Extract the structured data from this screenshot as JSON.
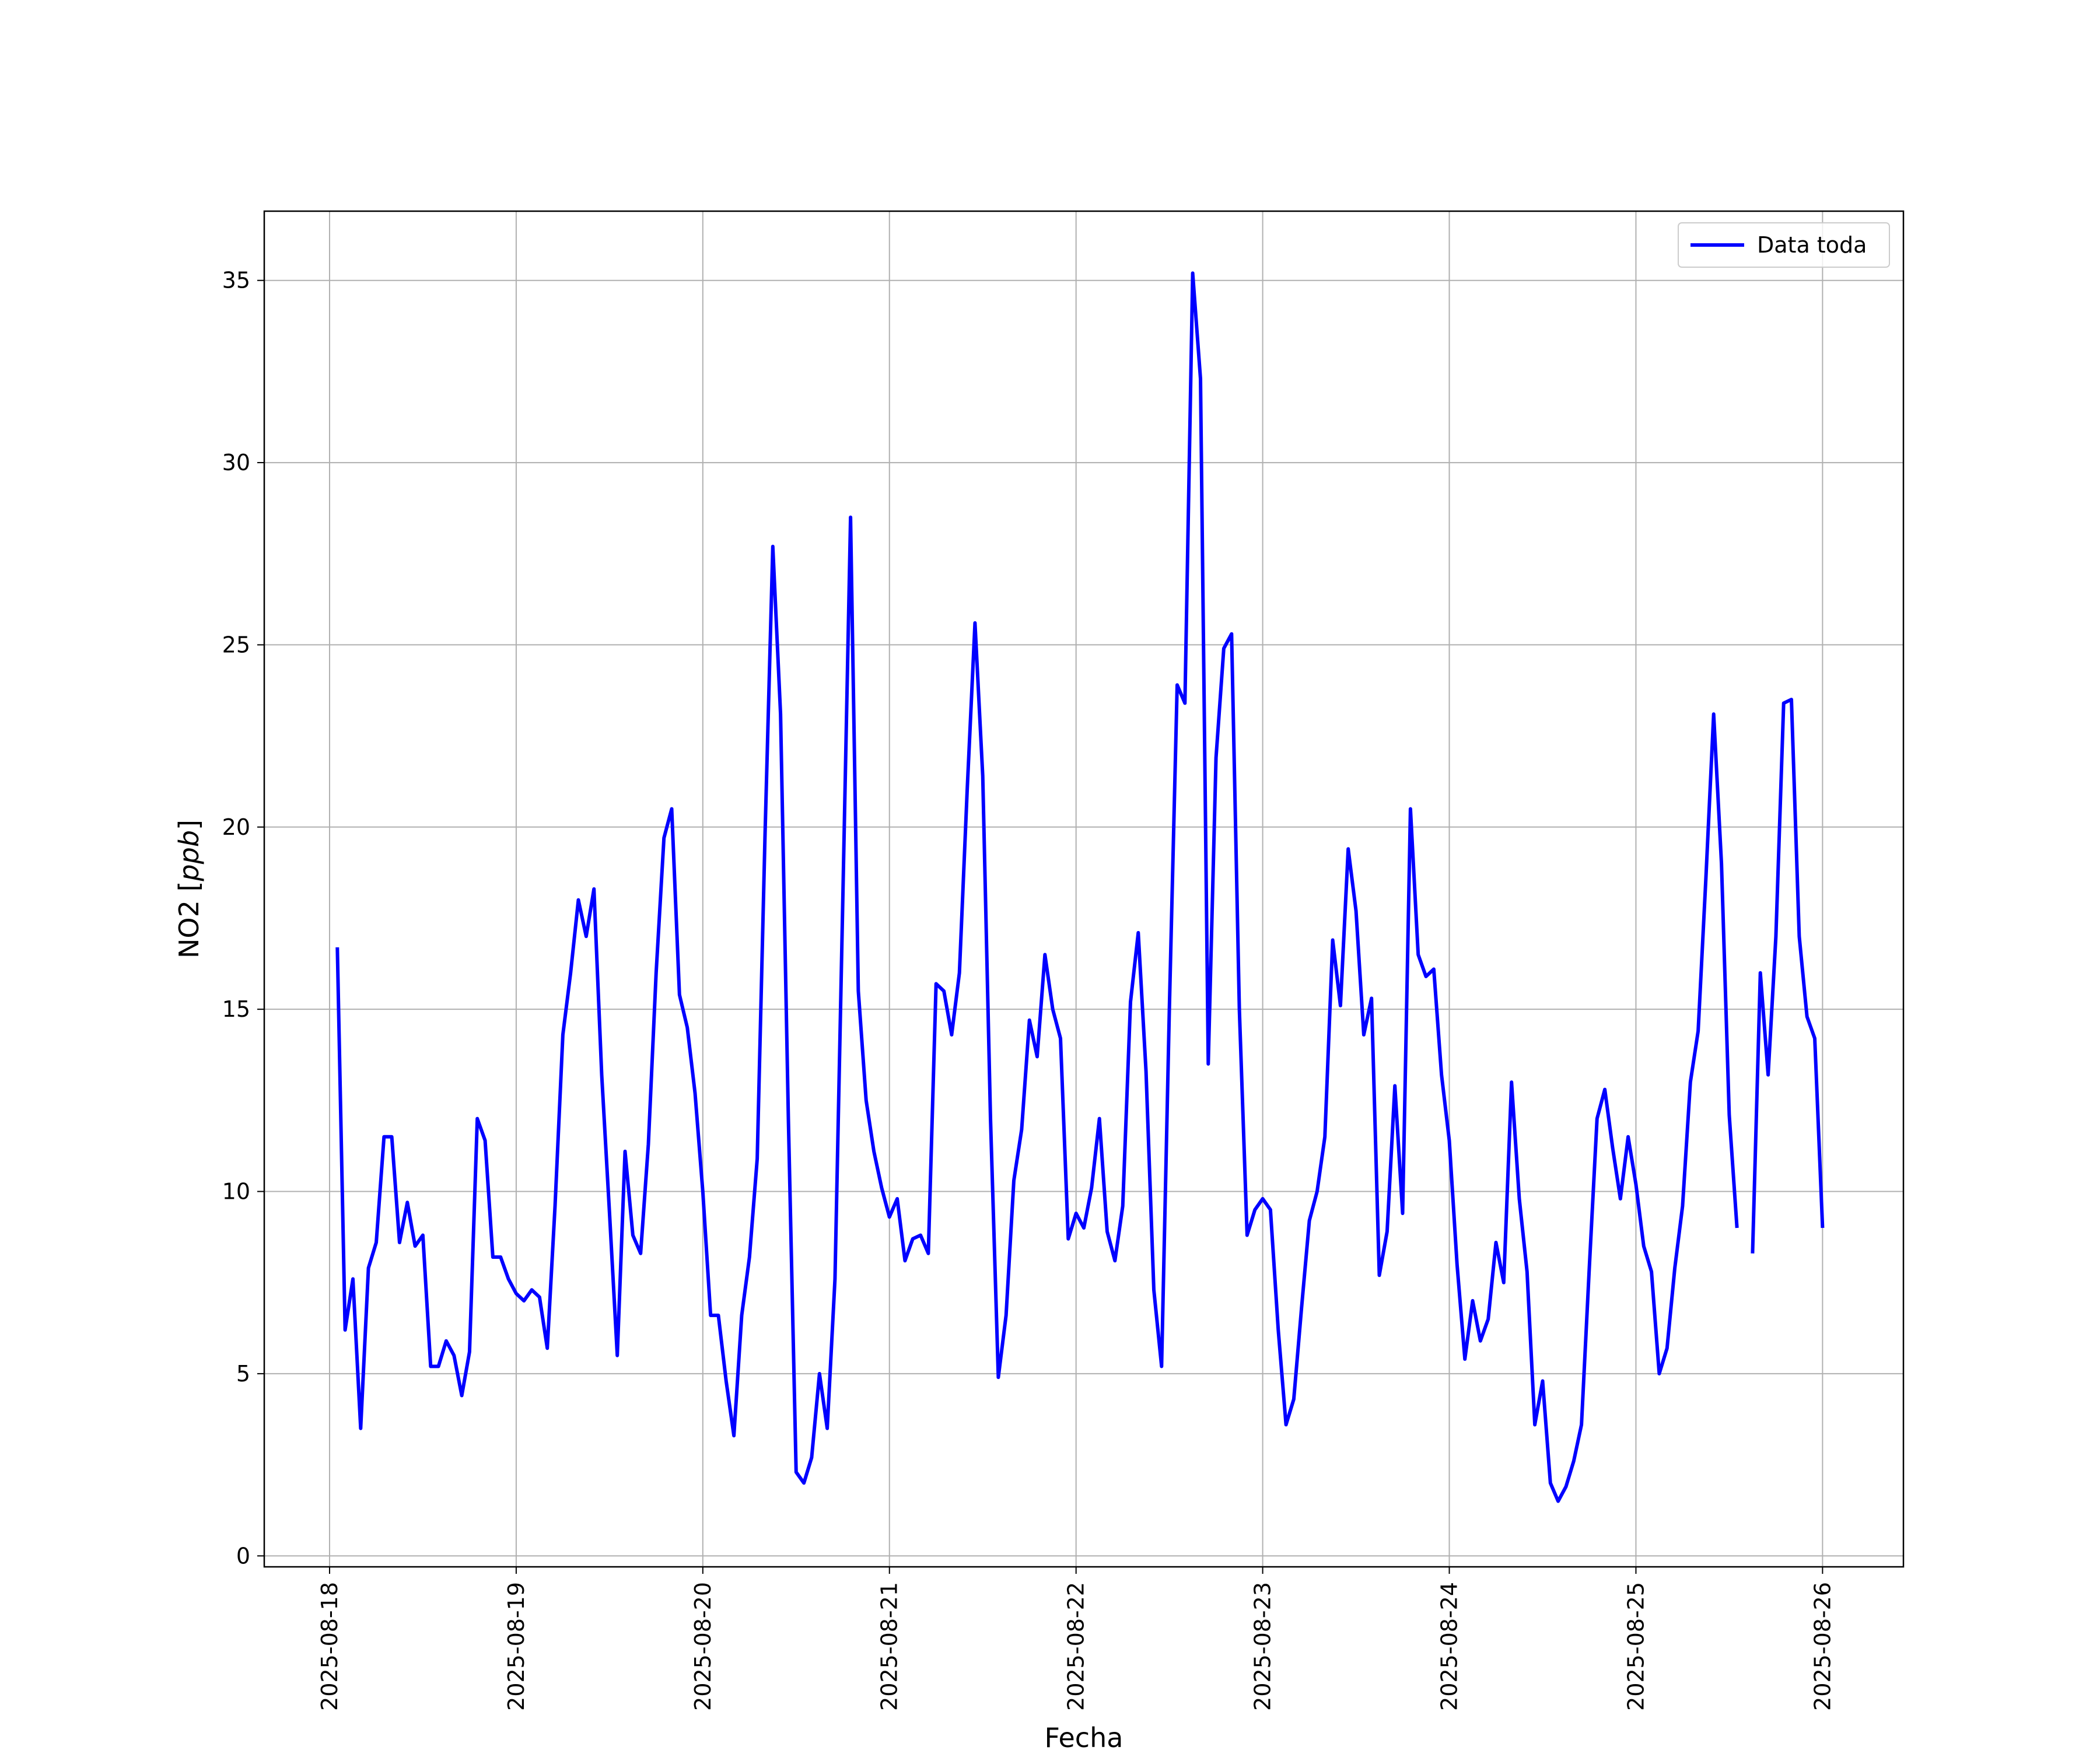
{
  "chart_data": {
    "type": "line",
    "title": "",
    "xlabel": "Fecha",
    "ylabel": "NO2 [ppb]",
    "ylabel_main": "NO2 [",
    "ylabel_unit": "ppb",
    "ylabel_close": "]",
    "ylim": [
      -0.3,
      36.9
    ],
    "xlim": [
      "2025-08-17T15:36",
      "2025-08-26T10:24"
    ],
    "yticks": [
      "0",
      "5",
      "10",
      "15",
      "20",
      "25",
      "30",
      "35"
    ],
    "xticks": [
      "2025-08-18",
      "2025-08-19",
      "2025-08-20",
      "2025-08-21",
      "2025-08-22",
      "2025-08-23",
      "2025-08-24",
      "2025-08-25",
      "2025-08-26"
    ],
    "grid": true,
    "legend": {
      "location": "upper right",
      "entries": [
        "Data toda"
      ]
    },
    "series": [
      {
        "name": "Data toda",
        "color": "#0000ff",
        "segments": [
          {
            "x": [
              "2025-08-18T01:00",
              "2025-08-18T02:00",
              "2025-08-18T03:00",
              "2025-08-18T04:00",
              "2025-08-18T05:00",
              "2025-08-18T06:00",
              "2025-08-18T07:00",
              "2025-08-18T08:00",
              "2025-08-18T09:00",
              "2025-08-18T10:00",
              "2025-08-18T11:00",
              "2025-08-18T12:00",
              "2025-08-18T13:00",
              "2025-08-18T14:00",
              "2025-08-18T15:00",
              "2025-08-18T16:00",
              "2025-08-18T17:00",
              "2025-08-18T18:00",
              "2025-08-18T19:00",
              "2025-08-18T20:00",
              "2025-08-18T21:00",
              "2025-08-18T22:00",
              "2025-08-18T23:00",
              "2025-08-19T00:00",
              "2025-08-19T01:00",
              "2025-08-19T02:00",
              "2025-08-19T03:00",
              "2025-08-19T04:00",
              "2025-08-19T05:00",
              "2025-08-19T06:00",
              "2025-08-19T07:00",
              "2025-08-19T08:00",
              "2025-08-19T09:00",
              "2025-08-19T10:00",
              "2025-08-19T11:00",
              "2025-08-19T12:00",
              "2025-08-19T13:00",
              "2025-08-19T14:00",
              "2025-08-19T15:00",
              "2025-08-19T16:00",
              "2025-08-19T17:00",
              "2025-08-19T18:00",
              "2025-08-19T19:00",
              "2025-08-19T20:00",
              "2025-08-19T21:00",
              "2025-08-19T22:00",
              "2025-08-19T23:00",
              "2025-08-20T00:00",
              "2025-08-20T01:00",
              "2025-08-20T02:00",
              "2025-08-20T03:00",
              "2025-08-20T04:00",
              "2025-08-20T05:00",
              "2025-08-20T06:00",
              "2025-08-20T07:00",
              "2025-08-20T08:00",
              "2025-08-20T09:00",
              "2025-08-20T10:00",
              "2025-08-20T11:00",
              "2025-08-20T12:00",
              "2025-08-20T13:00",
              "2025-08-20T14:00",
              "2025-08-20T15:00",
              "2025-08-20T16:00",
              "2025-08-20T17:00",
              "2025-08-20T18:00",
              "2025-08-20T19:00",
              "2025-08-20T20:00",
              "2025-08-20T21:00",
              "2025-08-20T22:00",
              "2025-08-20T23:00",
              "2025-08-21T00:00",
              "2025-08-21T01:00",
              "2025-08-21T02:00",
              "2025-08-21T03:00",
              "2025-08-21T04:00",
              "2025-08-21T05:00",
              "2025-08-21T06:00",
              "2025-08-21T07:00",
              "2025-08-21T08:00",
              "2025-08-21T09:00",
              "2025-08-21T10:00",
              "2025-08-21T11:00",
              "2025-08-21T12:00",
              "2025-08-21T13:00",
              "2025-08-21T14:00",
              "2025-08-21T15:00",
              "2025-08-21T16:00",
              "2025-08-21T17:00",
              "2025-08-21T18:00",
              "2025-08-21T19:00",
              "2025-08-21T20:00",
              "2025-08-21T21:00",
              "2025-08-21T22:00",
              "2025-08-21T23:00",
              "2025-08-22T00:00",
              "2025-08-22T01:00",
              "2025-08-22T02:00",
              "2025-08-22T03:00",
              "2025-08-22T04:00",
              "2025-08-22T05:00",
              "2025-08-22T06:00",
              "2025-08-22T07:00",
              "2025-08-22T08:00",
              "2025-08-22T09:00",
              "2025-08-22T10:00",
              "2025-08-22T11:00",
              "2025-08-22T12:00",
              "2025-08-22T13:00",
              "2025-08-22T14:00",
              "2025-08-22T15:00",
              "2025-08-22T16:00",
              "2025-08-22T17:00",
              "2025-08-22T18:00",
              "2025-08-22T19:00",
              "2025-08-22T20:00",
              "2025-08-22T21:00",
              "2025-08-22T22:00",
              "2025-08-22T23:00",
              "2025-08-23T00:00",
              "2025-08-23T01:00",
              "2025-08-23T02:00",
              "2025-08-23T03:00",
              "2025-08-23T04:00",
              "2025-08-23T05:00",
              "2025-08-23T06:00",
              "2025-08-23T07:00",
              "2025-08-23T08:00",
              "2025-08-23T09:00",
              "2025-08-23T10:00",
              "2025-08-23T11:00",
              "2025-08-23T12:00",
              "2025-08-23T13:00",
              "2025-08-23T14:00",
              "2025-08-23T15:00",
              "2025-08-23T16:00",
              "2025-08-23T17:00",
              "2025-08-23T18:00",
              "2025-08-23T19:00",
              "2025-08-23T20:00",
              "2025-08-23T21:00",
              "2025-08-23T22:00",
              "2025-08-23T23:00",
              "2025-08-24T00:00",
              "2025-08-24T01:00",
              "2025-08-24T02:00",
              "2025-08-24T03:00",
              "2025-08-24T04:00",
              "2025-08-24T05:00",
              "2025-08-24T06:00",
              "2025-08-24T07:00",
              "2025-08-24T08:00",
              "2025-08-24T09:00",
              "2025-08-24T10:00",
              "2025-08-24T11:00",
              "2025-08-24T12:00",
              "2025-08-24T13:00",
              "2025-08-24T14:00",
              "2025-08-24T15:00",
              "2025-08-24T16:00",
              "2025-08-24T17:00",
              "2025-08-24T18:00",
              "2025-08-24T19:00",
              "2025-08-24T20:00",
              "2025-08-24T21:00",
              "2025-08-24T22:00",
              "2025-08-24T23:00",
              "2025-08-25T00:00",
              "2025-08-25T01:00",
              "2025-08-25T02:00",
              "2025-08-25T03:00",
              "2025-08-25T04:00",
              "2025-08-25T05:00",
              "2025-08-25T06:00",
              "2025-08-25T07:00",
              "2025-08-25T08:00",
              "2025-08-25T09:00",
              "2025-08-25T10:00",
              "2025-08-25T11:00",
              "2025-08-25T12:00",
              "2025-08-25T13:00"
            ],
            "y": [
              16.7,
              6.2,
              7.6,
              3.5,
              7.9,
              8.6,
              11.5,
              11.5,
              8.6,
              9.7,
              8.5,
              8.8,
              5.2,
              5.2,
              5.9,
              5.5,
              4.4,
              5.6,
              12.0,
              11.4,
              8.2,
              8.2,
              7.6,
              7.2,
              7.0,
              7.3,
              7.1,
              5.7,
              9.6,
              14.3,
              16.0,
              18.0,
              17.0,
              18.3,
              13.2,
              9.4,
              5.5,
              11.1,
              8.8,
              8.3,
              11.3,
              16.0,
              19.7,
              20.5,
              15.4,
              14.5,
              12.7,
              10.0,
              6.6,
              6.6,
              4.8,
              3.3,
              6.6,
              8.2,
              10.9,
              19.8,
              27.7,
              23.1,
              12.0,
              2.3,
              2.0,
              2.7,
              5.0,
              3.5,
              7.6,
              18.0,
              28.5,
              15.5,
              12.5,
              11.1,
              10.1,
              9.3,
              9.8,
              8.1,
              8.7,
              8.8,
              8.3,
              15.7,
              15.5,
              14.3,
              16.0,
              21.0,
              25.6,
              21.4,
              12.0,
              4.9,
              6.6,
              10.3,
              11.7,
              14.7,
              13.7,
              16.5,
              15.0,
              14.2,
              8.7,
              9.4,
              9.0,
              10.1,
              12.0,
              8.9,
              8.1,
              9.6,
              15.2,
              17.1,
              13.3,
              7.3,
              5.2,
              15.0,
              23.9,
              23.4,
              35.2,
              32.3,
              13.5,
              21.9,
              24.9,
              25.3,
              15.0,
              8.8,
              9.5,
              9.8,
              9.5,
              6.2,
              3.6,
              4.3,
              6.8,
              9.2,
              10.0,
              11.5,
              16.9,
              15.1,
              19.4,
              17.7,
              14.3,
              15.3,
              7.7,
              8.9,
              12.9,
              9.4,
              20.5,
              16.5,
              15.9,
              16.1,
              13.2,
              11.4,
              8.0,
              5.4,
              7.0,
              5.9,
              6.5,
              8.6,
              7.5,
              13.0,
              9.8,
              7.8,
              3.6,
              4.8,
              2.0,
              1.5,
              1.9,
              2.6,
              3.6,
              7.9,
              12.0,
              12.8,
              11.2,
              9.8,
              11.5,
              10.2,
              8.5,
              7.8,
              5.0,
              5.7,
              7.9,
              9.6,
              13.0,
              14.4,
              18.6,
              23.1,
              19.0,
              12.1,
              9.0
            ]
          },
          {
            "x": [
              "2025-08-25T15:00",
              "2025-08-25T16:00",
              "2025-08-25T17:00",
              "2025-08-25T18:00",
              "2025-08-25T19:00",
              "2025-08-25T20:00",
              "2025-08-25T21:00",
              "2025-08-25T22:00",
              "2025-08-25T23:00",
              "2025-08-26T00:00"
            ],
            "y": [
              8.3,
              16.0,
              13.2,
              17.0,
              23.4,
              23.5,
              17.0,
              14.8,
              14.2,
              9.0
            ]
          }
        ]
      }
    ]
  }
}
